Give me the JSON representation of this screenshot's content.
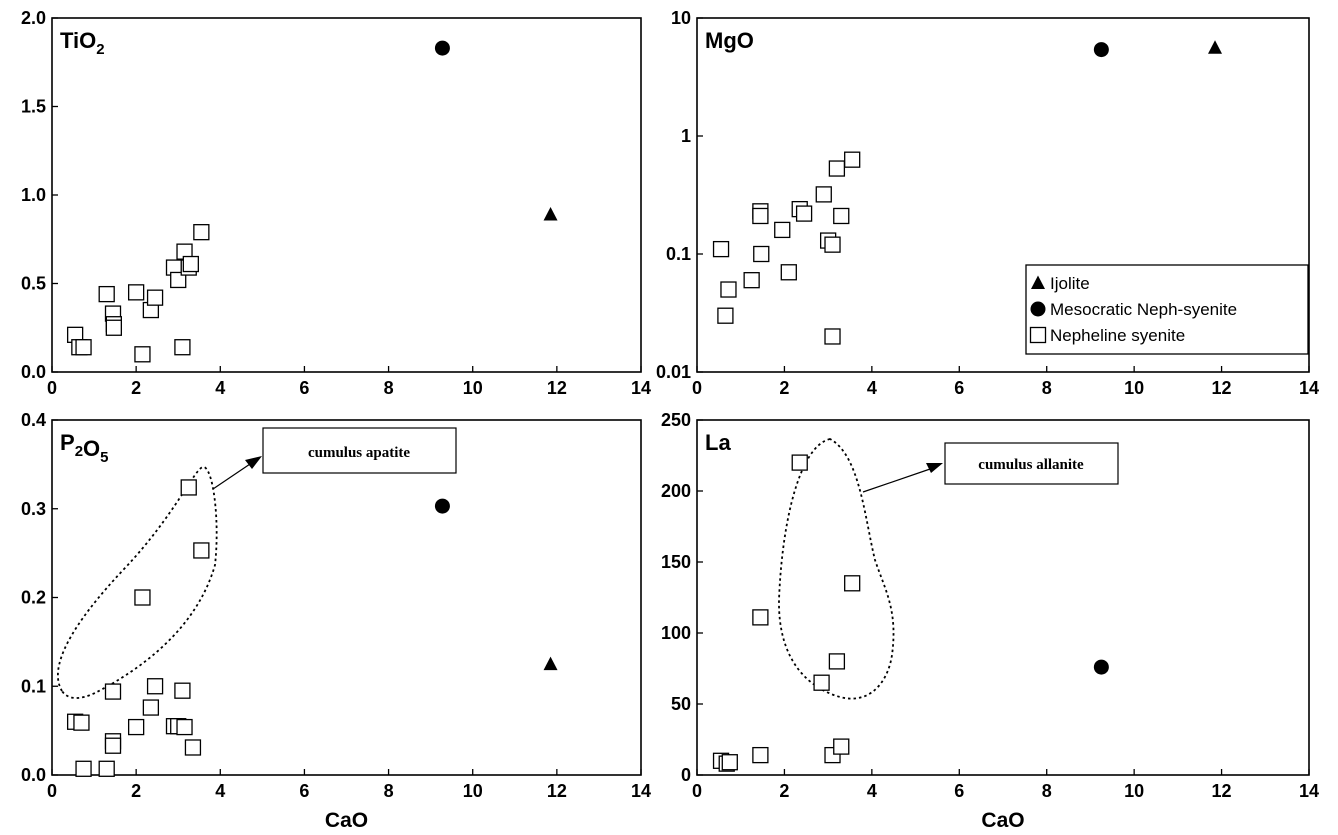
{
  "chart_data": [
    {
      "id": "tio2",
      "type": "scatter",
      "panel_label": {
        "main": "TiO",
        "sub": "2"
      },
      "xlabel": "",
      "xlim": [
        0,
        14
      ],
      "ylim": [
        0,
        2.0
      ],
      "xticks": [
        "0",
        "2",
        "4",
        "6",
        "8",
        "10",
        "12",
        "14"
      ],
      "yticks": [
        "0.0",
        "0.5",
        "1.0",
        "1.5",
        "2.0"
      ],
      "series": [
        {
          "name": "Ijolite",
          "marker": "triangle",
          "points": [
            [
              11.85,
              0.89
            ]
          ]
        },
        {
          "name": "Mesocratic Neph-syenite",
          "marker": "circle",
          "points": [
            [
              9.28,
              1.83
            ]
          ]
        },
        {
          "name": "Nepheline syenite",
          "marker": "square",
          "points": [
            [
              0.55,
              0.21
            ],
            [
              0.65,
              0.14
            ],
            [
              0.75,
              0.14
            ],
            [
              1.3,
              0.44
            ],
            [
              1.45,
              0.33
            ],
            [
              1.47,
              0.27
            ],
            [
              1.47,
              0.25
            ],
            [
              2.0,
              0.45
            ],
            [
              2.15,
              0.1
            ],
            [
              2.35,
              0.35
            ],
            [
              2.45,
              0.42
            ],
            [
              2.9,
              0.59
            ],
            [
              3.0,
              0.52
            ],
            [
              3.1,
              0.14
            ],
            [
              3.15,
              0.68
            ],
            [
              3.25,
              0.59
            ],
            [
              3.3,
              0.61
            ],
            [
              3.55,
              0.79
            ]
          ]
        }
      ]
    },
    {
      "id": "mgo",
      "type": "scatter",
      "panel_label": {
        "main": "MgO",
        "sub": ""
      },
      "xlabel": "",
      "xlim": [
        0,
        14
      ],
      "ylim": [
        0.01,
        10
      ],
      "yscale": "log",
      "xticks": [
        "0",
        "2",
        "4",
        "6",
        "8",
        "10",
        "12",
        "14"
      ],
      "yticks": [
        {
          "label": "0.01",
          "value": 0.01
        },
        {
          "label": "0.1",
          "value": 0.1
        },
        {
          "label": "1",
          "value": 1
        },
        {
          "label": "10",
          "value": 10
        }
      ],
      "series": [
        {
          "name": "Ijolite",
          "marker": "triangle",
          "points": [
            [
              11.85,
              5.6
            ]
          ]
        },
        {
          "name": "Mesocratic Neph-syenite",
          "marker": "circle",
          "points": [
            [
              9.25,
              5.4
            ]
          ]
        },
        {
          "name": "Nepheline syenite",
          "marker": "square",
          "points": [
            [
              0.55,
              0.11
            ],
            [
              0.65,
              0.03
            ],
            [
              0.72,
              0.05
            ],
            [
              1.25,
              0.06
            ],
            [
              1.45,
              0.23
            ],
            [
              1.45,
              0.21
            ],
            [
              1.47,
              0.1
            ],
            [
              1.95,
              0.16
            ],
            [
              2.1,
              0.07
            ],
            [
              2.35,
              0.24
            ],
            [
              2.45,
              0.22
            ],
            [
              2.9,
              0.32
            ],
            [
              3.0,
              0.13
            ],
            [
              3.1,
              0.12
            ],
            [
              3.1,
              0.02
            ],
            [
              3.2,
              0.53
            ],
            [
              3.3,
              0.21
            ],
            [
              3.55,
              0.63
            ]
          ]
        }
      ],
      "legend": {
        "placement": "lower-right",
        "entries": [
          {
            "marker": "triangle",
            "label": "Ijolite"
          },
          {
            "marker": "circle",
            "label": "Mesocratic Neph-syenite"
          },
          {
            "marker": "square",
            "label": "Nepheline syenite"
          }
        ]
      }
    },
    {
      "id": "p2o5",
      "type": "scatter",
      "panel_label": {
        "main": "P",
        "sub": "2",
        "main2": "O",
        "sub2": "5"
      },
      "xlabel": "CaO",
      "xlim": [
        0,
        14
      ],
      "ylim": [
        0,
        0.4
      ],
      "xticks": [
        "0",
        "2",
        "4",
        "6",
        "8",
        "10",
        "12",
        "14"
      ],
      "yticks": [
        "0.0",
        "0.1",
        "0.2",
        "0.3",
        "0.4"
      ],
      "series": [
        {
          "name": "Ijolite",
          "marker": "triangle",
          "points": [
            [
              11.85,
              0.125
            ]
          ]
        },
        {
          "name": "Mesocratic Neph-syenite",
          "marker": "circle",
          "points": [
            [
              9.28,
              0.303
            ]
          ]
        },
        {
          "name": "Nepheline syenite",
          "marker": "square",
          "points": [
            [
              0.55,
              0.06
            ],
            [
              0.7,
              0.059
            ],
            [
              0.75,
              0.007
            ],
            [
              1.3,
              0.007
            ],
            [
              1.45,
              0.094
            ],
            [
              1.45,
              0.038
            ],
            [
              1.45,
              0.033
            ],
            [
              2.0,
              0.054
            ],
            [
              2.15,
              0.2
            ],
            [
              2.35,
              0.076
            ],
            [
              2.45,
              0.1
            ],
            [
              2.9,
              0.055
            ],
            [
              3.0,
              0.055
            ],
            [
              3.1,
              0.095
            ],
            [
              3.15,
              0.054
            ],
            [
              3.25,
              0.324
            ],
            [
              3.35,
              0.031
            ],
            [
              3.55,
              0.253
            ]
          ]
        }
      ],
      "annotation": {
        "text": "cumulus apatite"
      }
    },
    {
      "id": "la",
      "type": "scatter",
      "panel_label": {
        "main": "La",
        "sub": ""
      },
      "xlabel": "CaO",
      "xlim": [
        0,
        14
      ],
      "ylim": [
        0,
        250
      ],
      "xticks": [
        "0",
        "2",
        "4",
        "6",
        "8",
        "10",
        "12",
        "14"
      ],
      "yticks": [
        "0",
        "50",
        "100",
        "150",
        "200",
        "250"
      ],
      "series": [
        {
          "name": "Mesocratic Neph-syenite",
          "marker": "circle",
          "points": [
            [
              9.25,
              76
            ]
          ]
        },
        {
          "name": "Nepheline syenite",
          "marker": "square",
          "points": [
            [
              0.55,
              10
            ],
            [
              0.68,
              8
            ],
            [
              0.75,
              9
            ],
            [
              1.45,
              111
            ],
            [
              1.45,
              14
            ],
            [
              2.35,
              220
            ],
            [
              2.85,
              65
            ],
            [
              3.1,
              14
            ],
            [
              3.2,
              80
            ],
            [
              3.3,
              20
            ],
            [
              3.55,
              135
            ]
          ]
        }
      ],
      "annotation": {
        "text": "cumulus allanite"
      }
    }
  ]
}
